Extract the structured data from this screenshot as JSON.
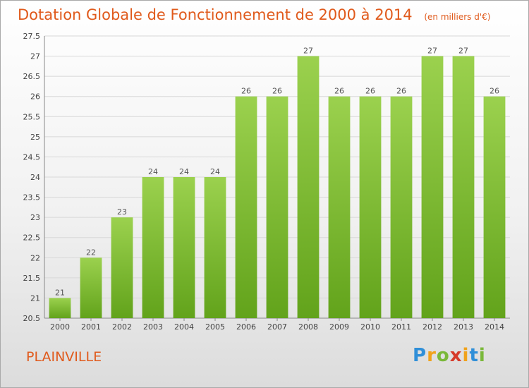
{
  "header": {
    "title": "Dotation Globale de Fonctionnement de 2000 à 2014",
    "subtitle": "(en milliers d'€)"
  },
  "footer": {
    "location": "PLAINVILLE",
    "logo_text": "Proxiti"
  },
  "colors": {
    "title": "#e05a1c",
    "bar_light": "#9bd14e",
    "bar_dark": "#62a31b",
    "grid": "#d8d8d8"
  },
  "chart_data": {
    "type": "bar",
    "title": "Dotation Globale de Fonctionnement de 2000 à 2014",
    "subtitle": "(en milliers d'€)",
    "xlabel": "",
    "ylabel": "",
    "categories": [
      "2000",
      "2001",
      "2002",
      "2003",
      "2004",
      "2005",
      "2006",
      "2007",
      "2008",
      "2009",
      "2010",
      "2011",
      "2012",
      "2013",
      "2014"
    ],
    "values": [
      21,
      22,
      23,
      24,
      24,
      24,
      26,
      26,
      27,
      26,
      26,
      26,
      27,
      27,
      26
    ],
    "data_labels": [
      "21",
      "22",
      "23",
      "24",
      "24",
      "24",
      "26",
      "26",
      "27",
      "26",
      "26",
      "26",
      "27",
      "27",
      "26"
    ],
    "ylim": [
      20.5,
      27.5
    ],
    "yticks": [
      20.5,
      21,
      21.5,
      22,
      22.5,
      23,
      23.5,
      24,
      24.5,
      25,
      25.5,
      26,
      26.5,
      27,
      27.5
    ],
    "grid": true,
    "legend": "none"
  }
}
